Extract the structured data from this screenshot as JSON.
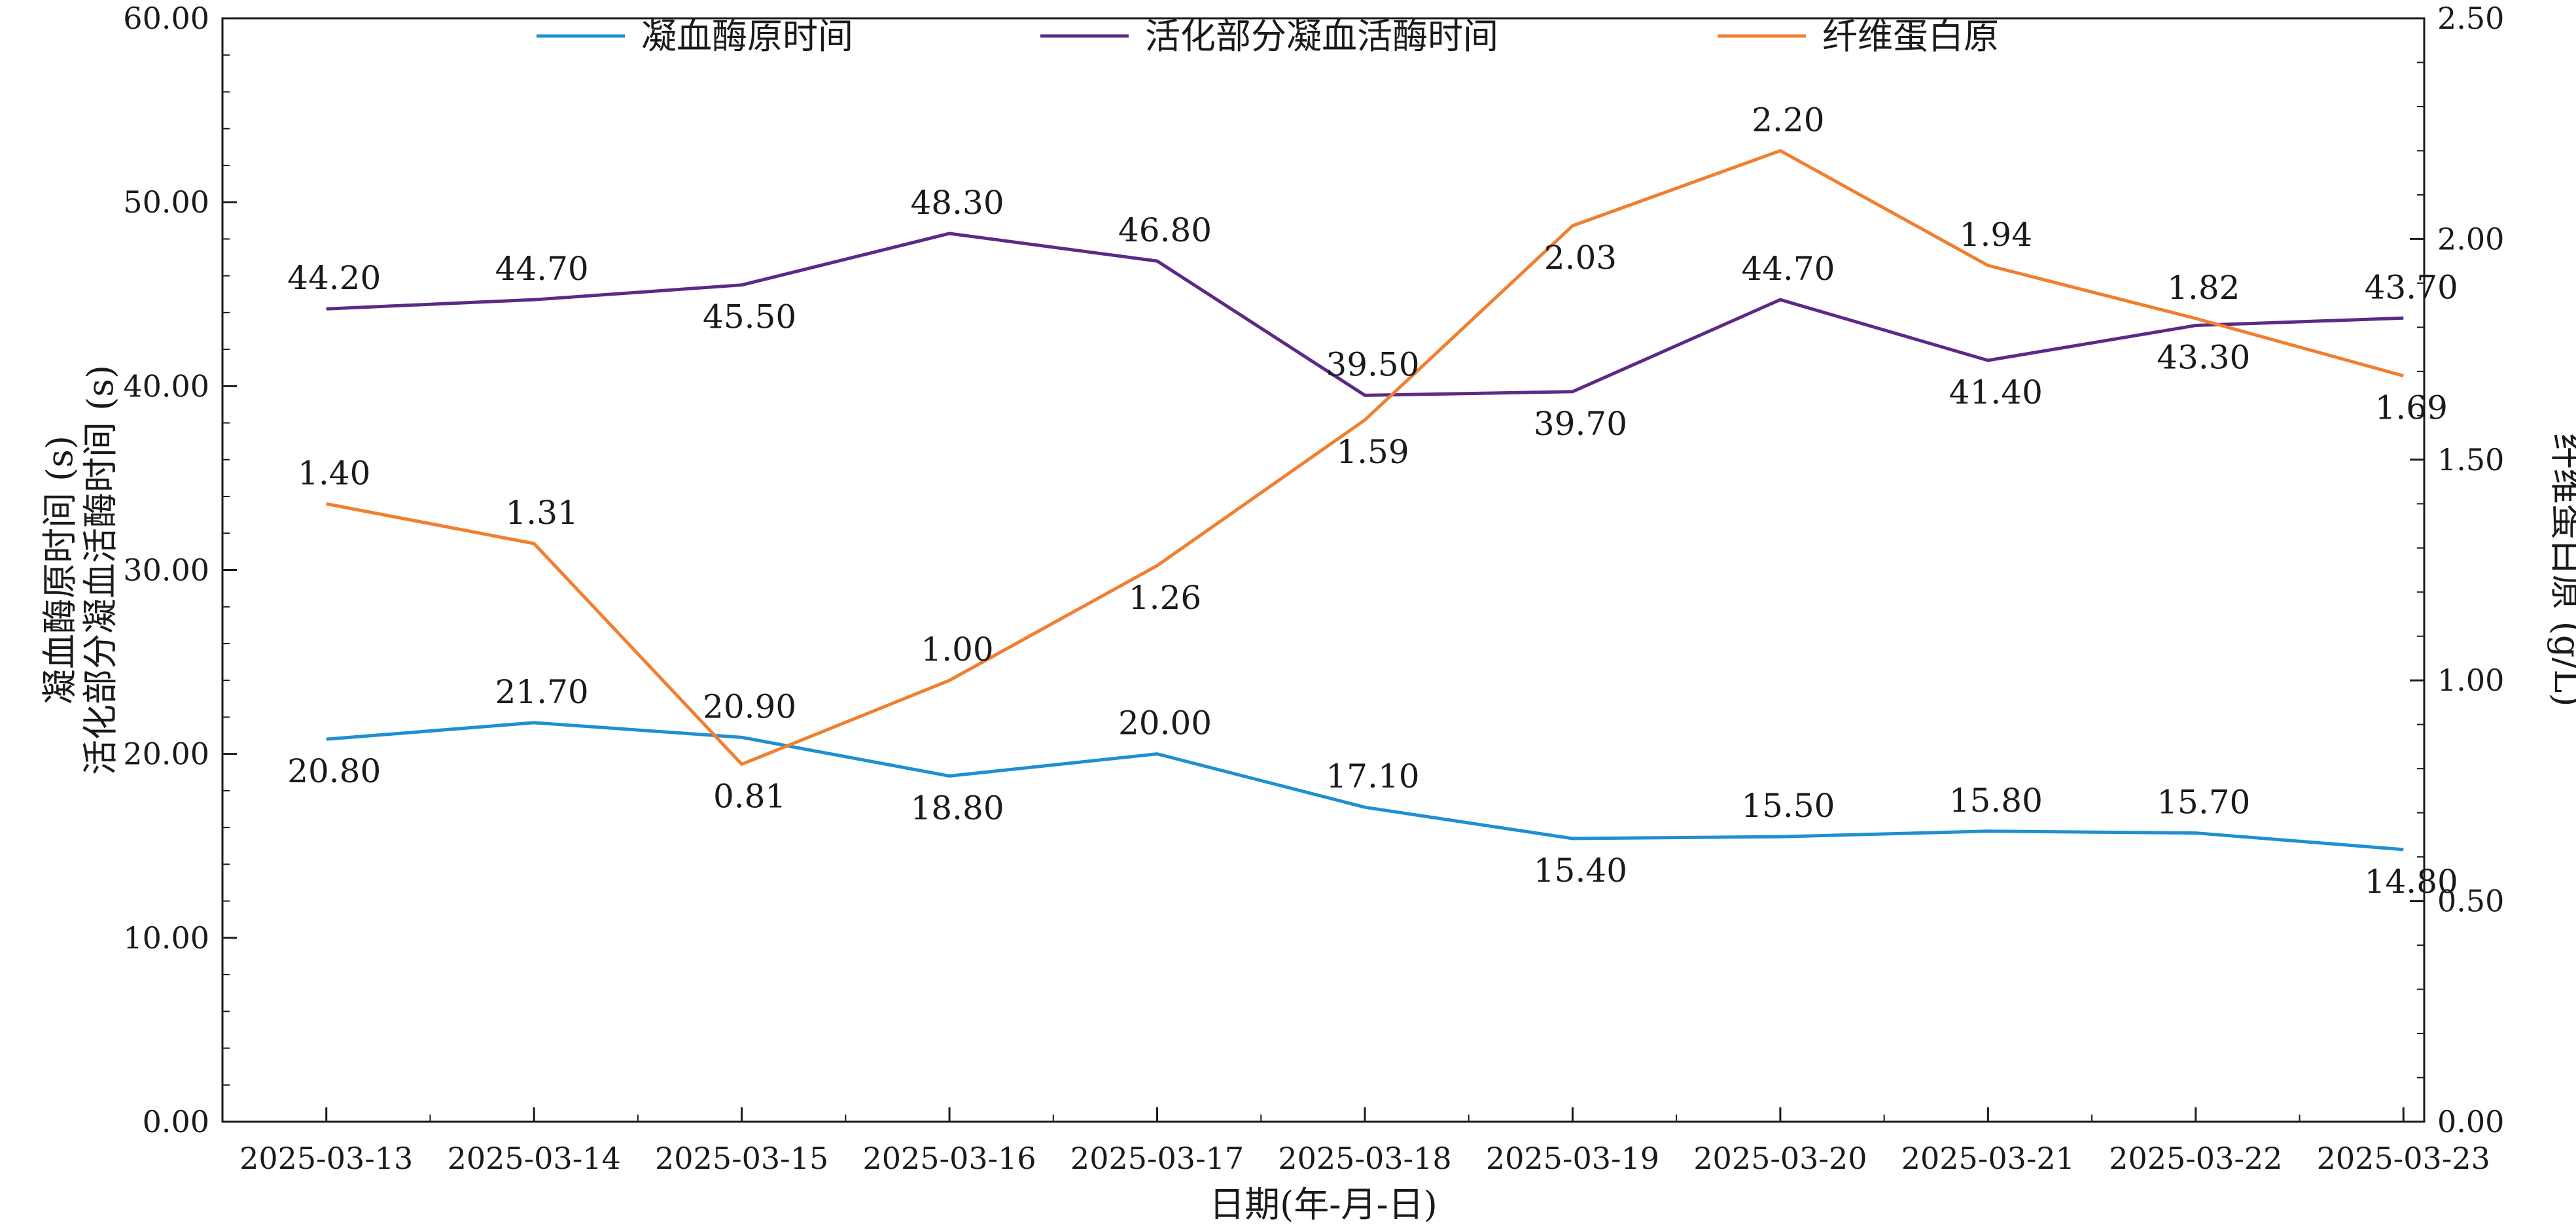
{
  "chart_data": {
    "type": "line",
    "x_label": "日期(年-月-日)",
    "y_left_label_lines": [
      "凝血酶原时间 (s)",
      "活化部分凝血活酶时间 (s)"
    ],
    "y_right_label": "纤维蛋白原 (g/L)",
    "categories": [
      "2025-03-13",
      "2025-03-14",
      "2025-03-15",
      "2025-03-16",
      "2025-03-17",
      "2025-03-18",
      "2025-03-19",
      "2025-03-20",
      "2025-03-21",
      "2025-03-22",
      "2025-03-23"
    ],
    "y_left_range": [
      0,
      60
    ],
    "y_left_ticks": [
      "0.00",
      "10.00",
      "20.00",
      "30.00",
      "40.00",
      "50.00",
      "60.00"
    ],
    "y_right_range": [
      0,
      2.5
    ],
    "y_right_ticks": [
      "0.00",
      "0.50",
      "1.00",
      "1.50",
      "2.00",
      "2.50"
    ],
    "legend_position": "top",
    "series": [
      {
        "name": "凝血酶原时间",
        "axis": "left",
        "color": "#1f8fd0",
        "values": [
          20.8,
          21.7,
          20.9,
          18.8,
          20.0,
          17.1,
          15.4,
          15.5,
          15.8,
          15.7,
          14.8
        ],
        "labels": [
          "20.80",
          "21.70",
          "20.90",
          "18.80",
          "20.00",
          "17.10",
          "15.40",
          "15.50",
          "15.80",
          "15.70",
          "14.80"
        ]
      },
      {
        "name": "活化部分凝血活酶时间",
        "axis": "left",
        "color": "#5b2a86",
        "values": [
          44.2,
          44.7,
          45.5,
          48.3,
          46.8,
          39.5,
          39.7,
          44.7,
          41.4,
          43.3,
          43.7
        ],
        "labels": [
          "44.20",
          "44.70",
          "45.50",
          "48.30",
          "46.80",
          "39.50",
          "39.70",
          "44.70",
          "41.40",
          "43.30",
          "43.70"
        ]
      },
      {
        "name": "纤维蛋白原",
        "axis": "right",
        "color": "#f07f30",
        "values": [
          1.4,
          1.31,
          0.81,
          1.0,
          1.26,
          1.59,
          2.03,
          2.2,
          1.94,
          1.82,
          1.69
        ],
        "labels": [
          "1.40",
          "1.31",
          "0.81",
          "1.00",
          "1.26",
          "1.59",
          "2.03",
          "2.20",
          "1.94",
          "1.82",
          "1.69"
        ]
      }
    ]
  }
}
